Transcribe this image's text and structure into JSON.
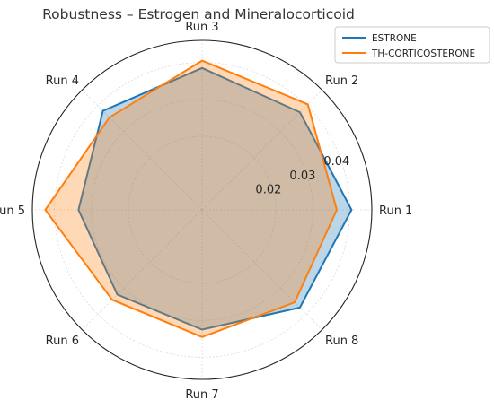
{
  "chart_data": {
    "type": "radar",
    "title": "Robustness – Estrogen and Mineralocorticoid",
    "categories": [
      "Run 1",
      "Run 2",
      "Run 3",
      "Run 4",
      "Run 5",
      "Run 6",
      "Run 7",
      "Run 8"
    ],
    "radial_ticks": [
      {
        "value": 0.02,
        "label": "0.02"
      },
      {
        "value": 0.03,
        "label": "0.03"
      },
      {
        "value": 0.04,
        "label": "0.04"
      }
    ],
    "rlim": [
      0,
      0.046
    ],
    "grid": true,
    "legend_position": "top-right",
    "series": [
      {
        "name": "ESTRONE",
        "color": "#1f77b4",
        "values": [
          0.0405,
          0.0375,
          0.0385,
          0.038,
          0.0335,
          0.0325,
          0.0325,
          0.0375
        ]
      },
      {
        "name": "TH-CORTICOSTERONE",
        "color": "#ff7f0e",
        "values": [
          0.0365,
          0.0405,
          0.0405,
          0.0355,
          0.0425,
          0.0345,
          0.0345,
          0.0355
        ]
      }
    ]
  }
}
